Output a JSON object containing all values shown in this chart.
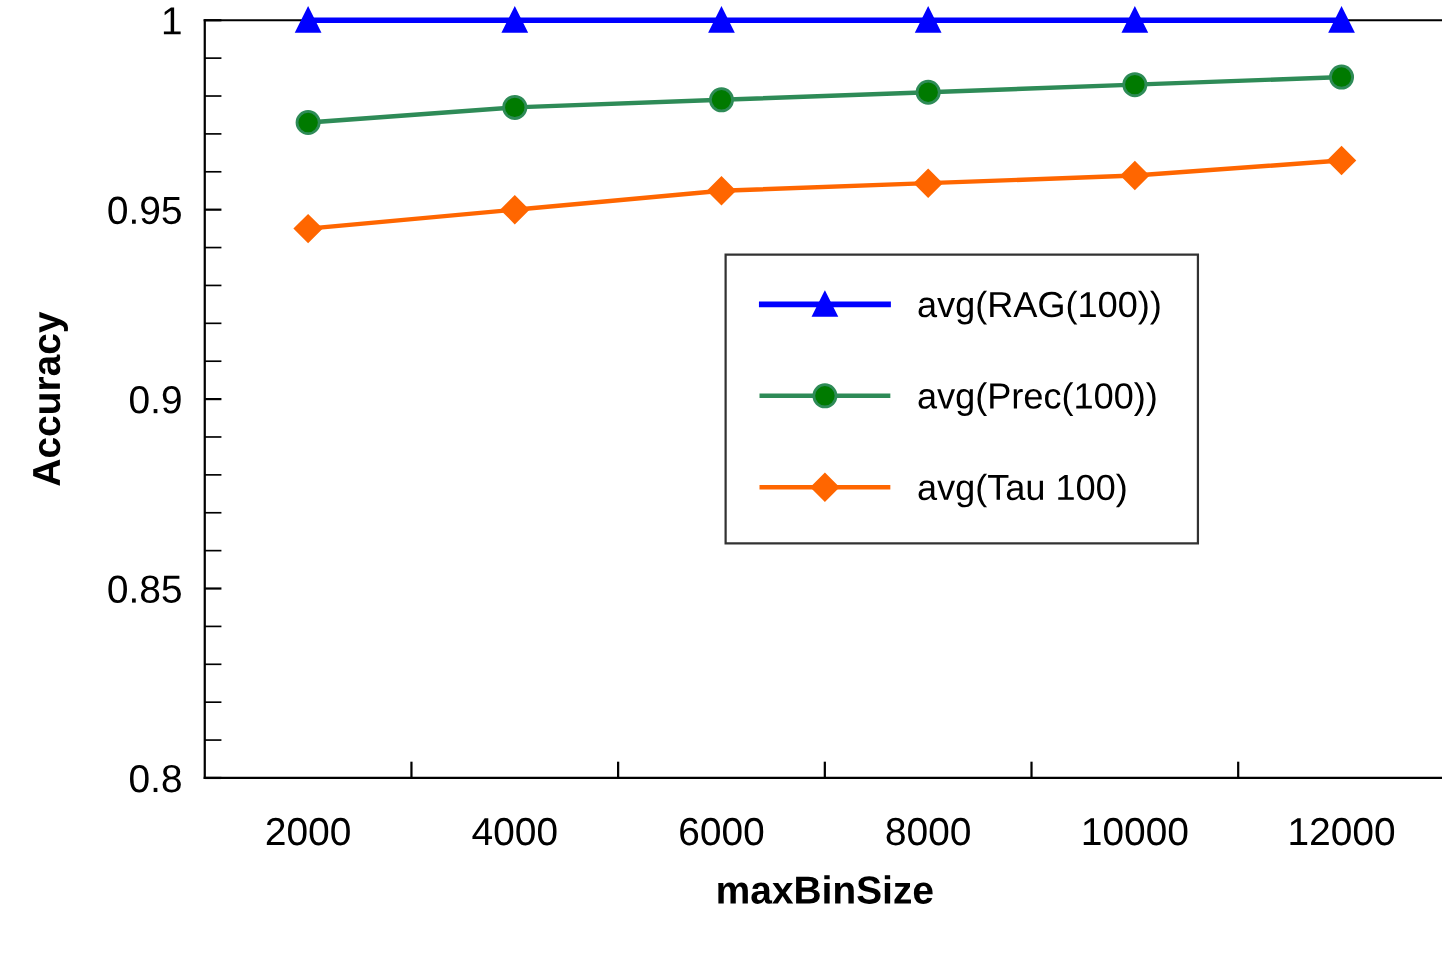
{
  "chart_data": {
    "type": "line",
    "xlabel": "maxBinSize",
    "ylabel": "Accuracy",
    "categories": [
      "2000",
      "4000",
      "6000",
      "8000",
      "10000",
      "12000"
    ],
    "ylim": [
      0.8,
      1
    ],
    "yticks": [
      0.8,
      0.85,
      0.9,
      0.95,
      1
    ],
    "grid": false,
    "legend": "right",
    "series": [
      {
        "name": "avg(RAG(100))",
        "color": "#0000ff",
        "marker": "triangle",
        "values": [
          1,
          1,
          1,
          1,
          1,
          1
        ]
      },
      {
        "name": "avg(Prec(100))",
        "color": "#2e8b57",
        "marker": "circle",
        "values": [
          0.973,
          0.977,
          0.979,
          0.981,
          0.983,
          0.985
        ]
      },
      {
        "name": "avg(Tau 100)",
        "color": "#ff6600",
        "marker": "diamond",
        "values": [
          0.945,
          0.95,
          0.955,
          0.957,
          0.959,
          0.963
        ]
      }
    ]
  }
}
